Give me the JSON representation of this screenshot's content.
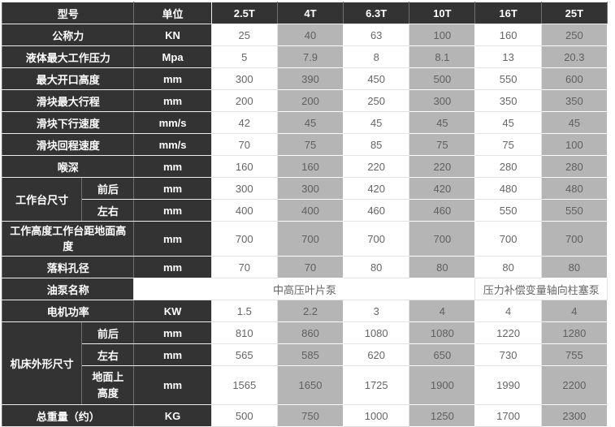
{
  "header": {
    "model": "型号",
    "unit": "单位",
    "models": [
      "2.5T",
      "4T",
      "6.3T",
      "10T",
      "16T",
      "25T"
    ]
  },
  "rows": {
    "nominal_force": {
      "label": "公称力",
      "unit": "KN",
      "values": [
        "25",
        "40",
        "63",
        "100",
        "160",
        "250"
      ]
    },
    "max_pressure": {
      "label": "液体最大工作压力",
      "unit": "Mpa",
      "values": [
        "5",
        "7.9",
        "8",
        "8.1",
        "13",
        "20.3"
      ]
    },
    "max_opening": {
      "label": "最大开口高度",
      "unit": "mm",
      "values": [
        "300",
        "390",
        "450",
        "500",
        "550",
        "600"
      ]
    },
    "max_stroke": {
      "label": "滑块最大行程",
      "unit": "mm",
      "values": [
        "200",
        "200",
        "250",
        "300",
        "350",
        "350"
      ]
    },
    "down_speed": {
      "label": "滑块下行速度",
      "unit": "mm/s",
      "values": [
        "42",
        "45",
        "45",
        "45",
        "45",
        "45"
      ]
    },
    "return_speed": {
      "label": "滑块回程速度",
      "unit": "mm/s",
      "values": [
        "70",
        "75",
        "85",
        "75",
        "75",
        "100"
      ]
    },
    "throat_depth": {
      "label": "喉深",
      "unit": "mm",
      "values": [
        "160",
        "160",
        "220",
        "220",
        "280",
        "280"
      ]
    },
    "worktable": {
      "label": "工作台尺寸",
      "front_back": {
        "label": "前后",
        "unit": "mm",
        "values": [
          "300",
          "300",
          "420",
          "420",
          "480",
          "480"
        ]
      },
      "left_right": {
        "label": "左右",
        "unit": "mm",
        "values": [
          "400",
          "400",
          "460",
          "460",
          "550",
          "550"
        ]
      }
    },
    "work_height": {
      "label": "工作高度工作台距地面高度",
      "unit": "mm",
      "values": [
        "700",
        "700",
        "700",
        "700",
        "700",
        "700"
      ]
    },
    "blanking_hole": {
      "label": "落料孔径",
      "unit": "mm",
      "values": [
        "70",
        "70",
        "80",
        "80",
        "80",
        "80"
      ]
    },
    "oil_pump": {
      "label": "油泵名称",
      "pump_small": "中高压叶片泵",
      "pump_large": "压力补偿变量轴向柱塞泵"
    },
    "motor_power": {
      "label": "电机功率",
      "unit": "KW",
      "values": [
        "1.5",
        "2.2",
        "3",
        "4",
        "4",
        "4"
      ]
    },
    "machine_dims": {
      "label": "机床外形尺寸",
      "front_back": {
        "label": "前后",
        "unit": "mm",
        "values": [
          "810",
          "860",
          "1080",
          "1080",
          "1220",
          "1280"
        ]
      },
      "left_right": {
        "label": "左右",
        "unit": "mm",
        "values": [
          "565",
          "585",
          "620",
          "650",
          "730",
          "755"
        ]
      },
      "height_ground": {
        "label": "地面上高度",
        "unit": "mm",
        "values": [
          "1565",
          "1650",
          "1725",
          "1900",
          "1990",
          "2200"
        ]
      }
    },
    "total_weight": {
      "label": "总重量（约）",
      "unit": "KG",
      "values": [
        "500",
        "750",
        "1000",
        "1250",
        "1700",
        "2300"
      ]
    }
  },
  "colors": {
    "header_bg": "#333333",
    "header_text": "#ffffff",
    "alt_cell_bg": "#b5b5b5",
    "cell_bg": "#ffffff",
    "cell_text": "#666666",
    "border_light": "#e3e3e3",
    "border_dark_vertical": "#6f6f6f"
  }
}
